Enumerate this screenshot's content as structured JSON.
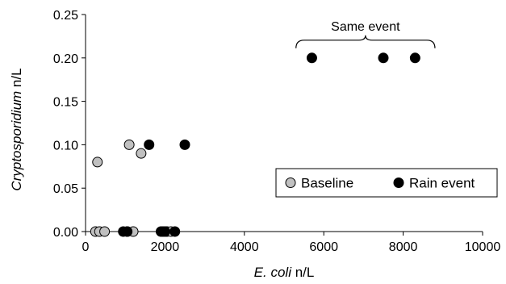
{
  "chart_data": {
    "type": "scatter",
    "title": "",
    "xlabel": {
      "italic": "E. coli",
      "rest": " n/L"
    },
    "ylabel": {
      "italic": "Cryptosporidium",
      "rest": " n/L"
    },
    "xlim": [
      0,
      10000
    ],
    "ylim": [
      0,
      0.25
    ],
    "x_ticks": [
      "0",
      "2000",
      "4000",
      "6000",
      "8000",
      "10000"
    ],
    "x_tick_values": [
      0,
      2000,
      4000,
      6000,
      8000,
      10000
    ],
    "y_ticks": [
      "0.00",
      "0.05",
      "0.10",
      "0.15",
      "0.20",
      "0.25"
    ],
    "y_tick_values": [
      0,
      0.05,
      0.1,
      0.15,
      0.2,
      0.25
    ],
    "grid": false,
    "legend_position": "center-right",
    "series": [
      {
        "name": "Baseline",
        "color": "#c0c0c0",
        "points": [
          [
            300,
            0.08
          ],
          [
            1100,
            0.1
          ],
          [
            1400,
            0.09
          ],
          [
            250,
            0
          ],
          [
            350,
            0
          ],
          [
            480,
            0
          ],
          [
            1050,
            0
          ],
          [
            1200,
            0
          ],
          [
            1950,
            0
          ],
          [
            2050,
            0
          ],
          [
            2150,
            0
          ]
        ]
      },
      {
        "name": "Rain event",
        "color": "#000000",
        "points": [
          [
            5700,
            0.2
          ],
          [
            7500,
            0.2
          ],
          [
            8300,
            0.2
          ],
          [
            1600,
            0.1
          ],
          [
            2500,
            0.1
          ],
          [
            950,
            0
          ],
          [
            1050,
            0
          ],
          [
            1900,
            0
          ],
          [
            2000,
            0
          ],
          [
            2250,
            0
          ]
        ]
      }
    ],
    "annotations": [
      {
        "text": "Same event",
        "x_range": [
          5300,
          8800
        ],
        "y": 0.2
      }
    ]
  }
}
